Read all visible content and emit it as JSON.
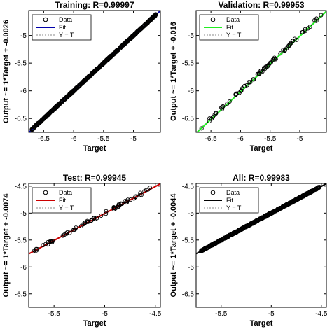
{
  "chart_data": [
    {
      "type": "scatter",
      "title": "Training: R=0.99997",
      "xlabel": "Target",
      "ylabel": "Output ~= 1*Target + -0.0026",
      "xlim": [
        -6.75,
        -4.55
      ],
      "ylim": [
        -6.75,
        -4.55
      ],
      "xticks": [
        "-6.5",
        "-6",
        "-5.5",
        "-5"
      ],
      "yticks": [
        "-5",
        "-5.5",
        "-6",
        "-6.5"
      ],
      "xtick_values": [
        -6.5,
        -6,
        -5.5,
        -5
      ],
      "ytick_values": [
        -5,
        -5.5,
        -6,
        -6.5
      ],
      "legend": [
        "Data",
        "Fit",
        "Y = T"
      ],
      "legend_position": "top-left",
      "fit_color": "#0000aa",
      "fit": {
        "slope": 1,
        "intercept": -0.0026
      },
      "series": [
        {
          "name": "Data",
          "x_range": [
            -6.7,
            -4.62
          ],
          "density": "dense"
        }
      ]
    },
    {
      "type": "scatter",
      "title": "Validation: R=0.99953",
      "xlabel": "Target",
      "ylabel": "Output ~= 1*Target + -0.016",
      "xlim": [
        -6.75,
        -4.55
      ],
      "ylim": [
        -6.75,
        -4.55
      ],
      "xticks": [
        "-6.5",
        "-6",
        "-5.5",
        "-5"
      ],
      "yticks": [
        "-5",
        "-5.5",
        "-6",
        "-6.5"
      ],
      "xtick_values": [
        -6.5,
        -6,
        -5.5,
        -5
      ],
      "ytick_values": [
        -5,
        -5.5,
        -6,
        -6.5
      ],
      "legend": [
        "Data",
        "Fit",
        "Y = T"
      ],
      "legend_position": "top-left",
      "fit_color": "#22ee22",
      "fit": {
        "slope": 1,
        "intercept": -0.016
      },
      "series": [
        {
          "name": "Data",
          "x_range": [
            -6.68,
            -4.63
          ],
          "density": "sparse"
        }
      ]
    },
    {
      "type": "scatter",
      "title": "Test: R=0.99945",
      "xlabel": "Target",
      "ylabel": "Output ~= 1*Target + -0.0074",
      "xlim": [
        -5.75,
        -4.45
      ],
      "ylim": [
        -6.75,
        -4.45
      ],
      "xticks": [
        "-5.5",
        "-5",
        "-4.5"
      ],
      "yticks": [
        "-4.5",
        "-5",
        "-5.5",
        "-6",
        "-6.5"
      ],
      "xtick_values": [
        -5.5,
        -5,
        -4.5
      ],
      "ytick_values": [
        -4.5,
        -5,
        -5.5,
        -6,
        -6.5
      ],
      "legend": [
        "Data",
        "Fit",
        "Y = T"
      ],
      "legend_position": "top-left",
      "fit_color": "#cc0000",
      "fit": {
        "slope": 1,
        "intercept": -0.0074
      },
      "series": [
        {
          "name": "Data",
          "x_range": [
            -5.7,
            -4.55
          ],
          "density": "sparse"
        }
      ]
    },
    {
      "type": "scatter",
      "title": "All: R=0.99983",
      "xlabel": "Target",
      "ylabel": "Output ~= 1*Target + -0.0044",
      "xlim": [
        -5.75,
        -4.45
      ],
      "ylim": [
        -6.75,
        -4.45
      ],
      "xticks": [
        "-5.5",
        "-5",
        "-4.5"
      ],
      "yticks": [
        "-4.5",
        "-5",
        "-5.5",
        "-6",
        "-6.5"
      ],
      "xtick_values": [
        -5.5,
        -5,
        -4.5
      ],
      "ytick_values": [
        -4.5,
        -5,
        -5.5,
        -6,
        -6.5
      ],
      "legend": [
        "Data",
        "Fit",
        "Y = T"
      ],
      "legend_position": "top-left",
      "fit_color": "#000000",
      "fit": {
        "slope": 1,
        "intercept": -0.0044
      },
      "series": [
        {
          "name": "Data",
          "x_range": [
            -5.7,
            -4.52
          ],
          "density": "dense"
        }
      ]
    }
  ]
}
